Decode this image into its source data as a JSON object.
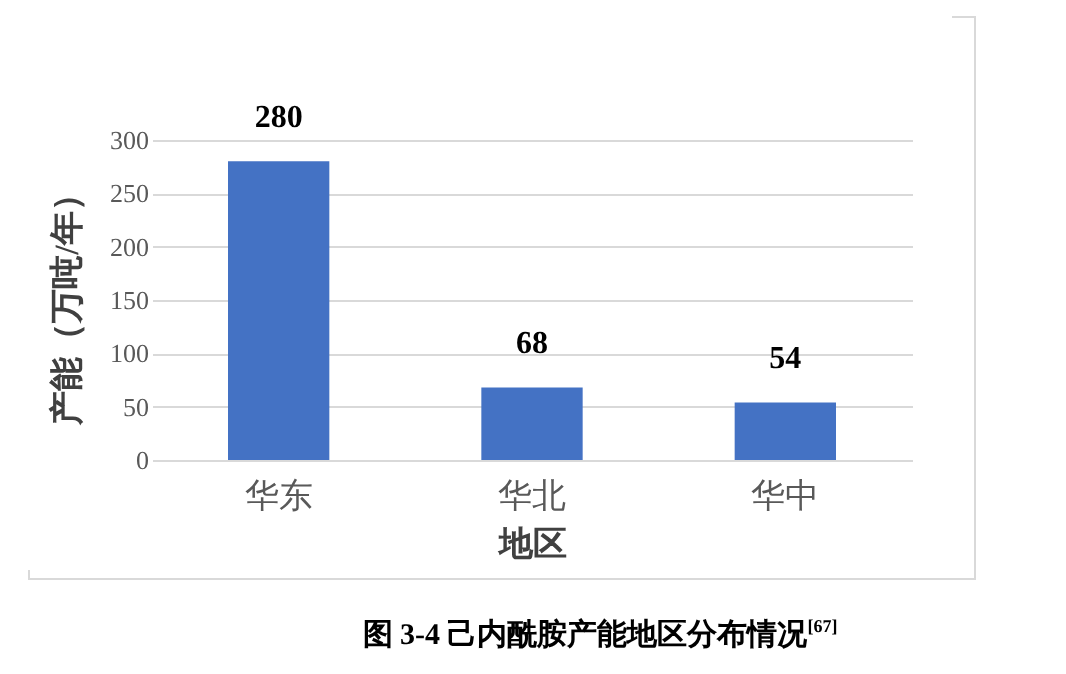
{
  "chart_data": {
    "type": "bar",
    "title": "图 3-4  己内酰胺产能地区分布情况$^{[67]}$",
    "xlabel": "地区",
    "ylabel": "产能（万吨/年）",
    "categories": [
      "华东",
      "华北",
      "华中"
    ],
    "values": [
      280,
      68,
      54
    ],
    "color": "#4472c4",
    "ylim": [
      0,
      300
    ],
    "yticks": [
      0,
      50,
      100,
      150,
      200,
      250,
      300
    ],
    "grid": "y",
    "data_labels": true
  }
}
